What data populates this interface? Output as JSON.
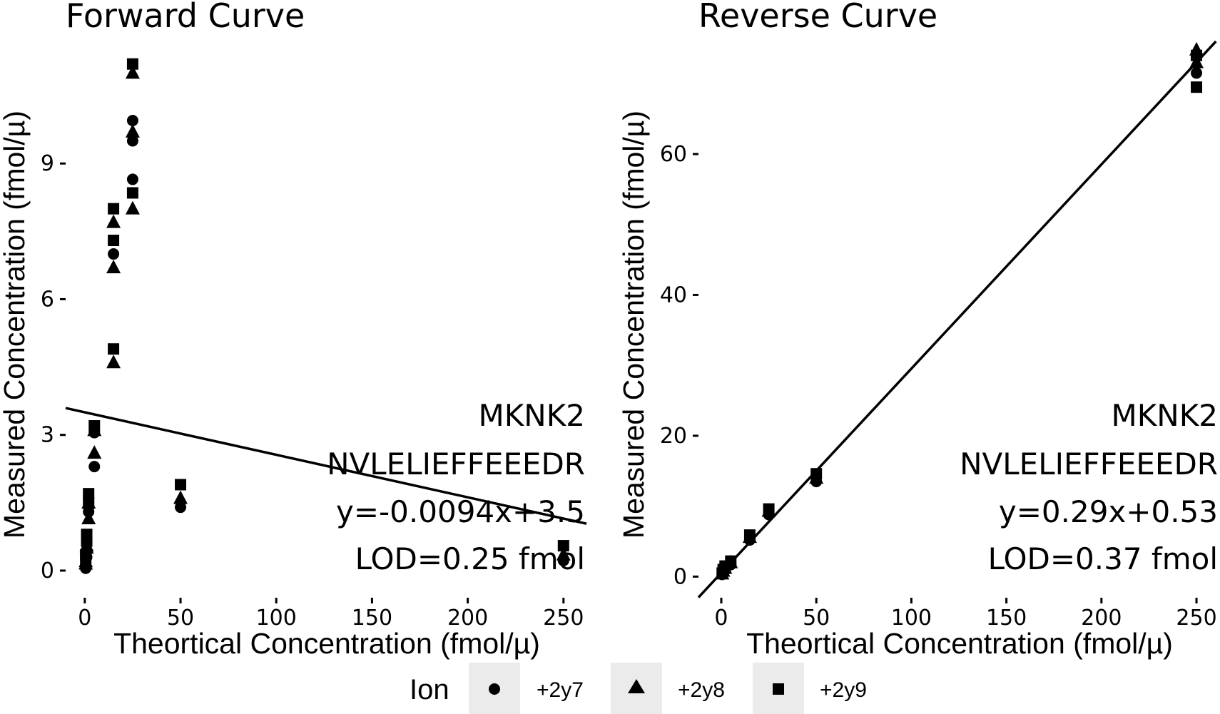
{
  "chart_data": [
    {
      "type": "scatter",
      "title": "Forward Curve",
      "xlabel": "Theortical Concentration (fmol/µ)",
      "ylabel": "Measured Concentration (fmol/µ)",
      "xlim": [
        -10,
        262
      ],
      "ylim": [
        -0.6,
        11.7
      ],
      "xticks": [
        0,
        50,
        100,
        150,
        200,
        250
      ],
      "yticks": [
        0,
        3,
        6,
        9
      ],
      "annotations": [
        "MKNK2",
        "NVLELIEFFEEEDR",
        "y=-0.0094x+3.5",
        "LOD=0.25 fmol"
      ],
      "fit": {
        "slope": -0.0094,
        "intercept": 3.5
      },
      "series": [
        {
          "name": "+2y7",
          "shape": "circle",
          "x": [
            0.5,
            0.5,
            1,
            1,
            2,
            2,
            5,
            5,
            15,
            25,
            25,
            25,
            50,
            250
          ],
          "y": [
            0.1,
            0.05,
            0.3,
            0.45,
            1.3,
            1.4,
            2.3,
            3.05,
            7.0,
            8.65,
            9.5,
            9.95,
            1.4,
            0.22
          ]
        },
        {
          "name": "+2y8",
          "shape": "triangle",
          "x": [
            0.5,
            0.5,
            1,
            1,
            2,
            2,
            5,
            5,
            15,
            15,
            15,
            25,
            25,
            25,
            50,
            250
          ],
          "y": [
            0.15,
            0.2,
            0.5,
            0.55,
            1.15,
            1.5,
            2.6,
            3.1,
            4.6,
            6.7,
            7.7,
            8.0,
            9.7,
            11.0,
            1.6,
            0.35
          ]
        },
        {
          "name": "+2y9",
          "shape": "square",
          "x": [
            0.5,
            0.5,
            1,
            1,
            2,
            2,
            5,
            15,
            15,
            15,
            25,
            25,
            50,
            250
          ],
          "y": [
            0.25,
            0.35,
            0.65,
            0.8,
            1.5,
            1.7,
            3.2,
            4.9,
            7.3,
            8.0,
            8.35,
            11.2,
            1.9,
            0.55
          ]
        }
      ]
    },
    {
      "type": "scatter",
      "title": "Reverse Curve",
      "xlabel": "Theortical Concentration (fmol/µ)",
      "ylabel": "Measured Concentration (fmol/µ)",
      "xlim": [
        -12,
        262
      ],
      "ylim": [
        -3,
        76
      ],
      "xticks": [
        0,
        50,
        100,
        150,
        200,
        250
      ],
      "yticks": [
        0,
        20,
        40,
        60
      ],
      "annotations": [
        "MKNK2",
        "NVLELIEFFEEEDR",
        "y=0.29x+0.53",
        "LOD=0.37 fmol"
      ],
      "fit": {
        "slope": 0.29,
        "intercept": 0.53
      },
      "series": [
        {
          "name": "+2y7",
          "shape": "circle",
          "x": [
            0.5,
            1,
            2,
            5,
            15,
            25,
            50,
            250
          ],
          "y": [
            0.3,
            0.6,
            0.9,
            1.7,
            5.2,
            8.8,
            13.5,
            71.5
          ]
        },
        {
          "name": "+2y8",
          "shape": "triangle",
          "x": [
            0.5,
            1,
            2,
            5,
            15,
            25,
            50,
            250,
            250
          ],
          "y": [
            0.4,
            0.8,
            1.2,
            2.0,
            5.6,
            9.3,
            14.0,
            73.0,
            74.8
          ]
        },
        {
          "name": "+2y9",
          "shape": "square",
          "x": [
            0.5,
            1,
            2,
            5,
            15,
            25,
            50,
            250,
            250
          ],
          "y": [
            0.5,
            1.0,
            1.5,
            2.2,
            5.9,
            9.6,
            14.6,
            69.5,
            74.0
          ]
        }
      ]
    }
  ],
  "legend": {
    "title": "Ion",
    "items": [
      {
        "label": "+2y7",
        "shape": "circle"
      },
      {
        "label": "+2y8",
        "shape": "triangle"
      },
      {
        "label": "+2y9",
        "shape": "square"
      }
    ]
  }
}
